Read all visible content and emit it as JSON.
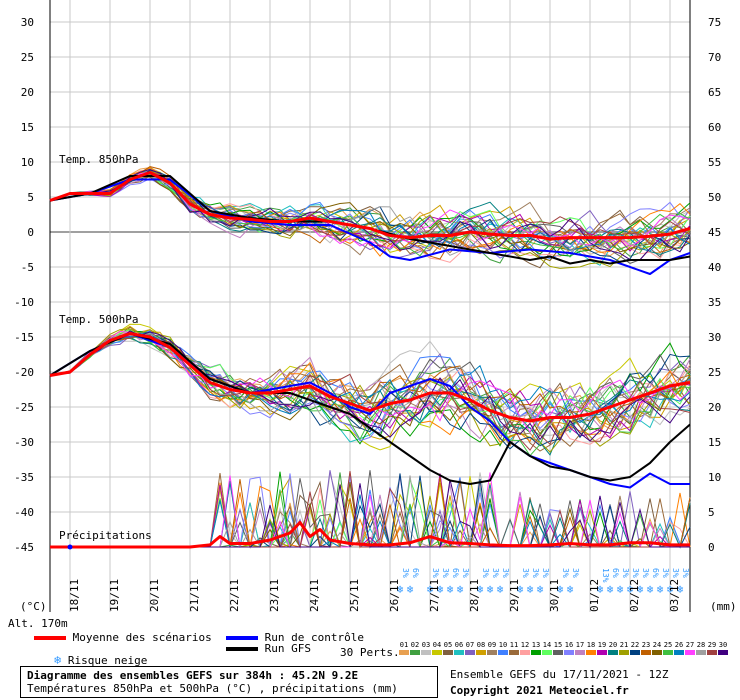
{
  "chart_data": {
    "type": "line",
    "title": "Diagramme des ensembles GEFS sur 384h : 45.2N 9.2E",
    "subtitle": "Températures 850hPa et 500hPa (°C) , précipitations (mm)",
    "left_axis": {
      "unit": "(°C)",
      "ylim": [
        -45,
        30
      ],
      "ticks": [
        30,
        25,
        20,
        15,
        10,
        5,
        0,
        -5,
        -10,
        -15,
        -20,
        -25,
        -30,
        -35,
        -40,
        -45
      ]
    },
    "right_axis": {
      "unit": "(mm)",
      "ylim": [
        0,
        75
      ],
      "ticks": [
        75,
        70,
        65,
        60,
        55,
        50,
        45,
        40,
        35,
        30,
        25,
        20,
        15,
        10,
        5,
        0
      ]
    },
    "x_dates": [
      "18/11",
      "19/11",
      "20/11",
      "21/11",
      "22/11",
      "23/11",
      "24/11",
      "25/11",
      "26/11",
      "27/11",
      "28/11",
      "29/11",
      "30/11",
      "01/12",
      "02/12",
      "03/12"
    ],
    "x_range_hours": [
      0,
      384
    ],
    "panel_labels": {
      "t850": "Temp. 850hPa",
      "t500": "Temp. 500hPa",
      "precip": "Précipitations"
    },
    "altitude": "Alt. 170m",
    "series": [
      {
        "name": "Moyenne des scénarios (850hPa)",
        "hours": [
          0,
          12,
          24,
          36,
          48,
          60,
          72,
          84,
          96,
          108,
          120,
          132,
          144,
          156,
          168,
          180,
          192,
          204,
          216,
          228,
          240,
          252,
          264,
          276,
          288,
          300,
          312,
          324,
          336,
          348,
          360,
          372,
          384
        ],
        "values": [
          4.5,
          5.5,
          5.5,
          5.5,
          7.5,
          8.5,
          7,
          4,
          2.5,
          2,
          1.8,
          1.5,
          1.5,
          2,
          1.5,
          1,
          0.5,
          -0.5,
          -0.8,
          -0.5,
          -0.5,
          0,
          -0.3,
          -0.5,
          -0.5,
          -1,
          -0.8,
          -0.8,
          -0.8,
          -0.8,
          -0.6,
          -0.3,
          0.5
        ]
      },
      {
        "name": "Moyenne des scénarios (500hPa)",
        "hours": [
          0,
          12,
          24,
          36,
          48,
          60,
          72,
          84,
          96,
          108,
          120,
          132,
          144,
          156,
          168,
          180,
          192,
          204,
          216,
          228,
          240,
          252,
          264,
          276,
          288,
          300,
          312,
          324,
          336,
          348,
          360,
          372,
          384
        ],
        "values": [
          -20.5,
          -20,
          -17.5,
          -15.5,
          -14.5,
          -15,
          -16.5,
          -19,
          -21.5,
          -22.5,
          -23,
          -23,
          -22.5,
          -22,
          -23.5,
          -24.5,
          -25.5,
          -24.5,
          -24,
          -23,
          -23,
          -24,
          -25.5,
          -26.5,
          -27,
          -26.5,
          -26.5,
          -26,
          -25,
          -24,
          -23,
          -22,
          -21.5
        ]
      },
      {
        "name": "Moyenne des scénarios (précipitations mm)",
        "hours": [
          0,
          12,
          24,
          36,
          48,
          60,
          72,
          84,
          96,
          102,
          108,
          120,
          132,
          144,
          150,
          156,
          162,
          168,
          180,
          192,
          204,
          216,
          228,
          240,
          252,
          264,
          276,
          288,
          300,
          312,
          324,
          336,
          348,
          360,
          372,
          384
        ],
        "values": [
          0,
          0,
          0,
          0,
          0,
          0,
          0,
          0,
          0.3,
          1.5,
          0.5,
          0.5,
          1,
          2,
          3.5,
          1.5,
          2.5,
          1,
          0.5,
          0.3,
          0.3,
          0.6,
          1.5,
          0.6,
          0.5,
          0.3,
          0.2,
          0.2,
          0.3,
          0.5,
          0.3,
          0.3,
          0.6,
          0.6,
          0.3,
          0.3
        ]
      },
      {
        "name": "Run de contrôle (850hPa)",
        "hours": [
          0,
          24,
          48,
          72,
          96,
          120,
          144,
          168,
          192,
          204,
          216,
          240,
          264,
          288,
          312,
          336,
          360,
          372,
          384
        ],
        "values": [
          4.5,
          5.5,
          7.5,
          7.5,
          3,
          1.5,
          1,
          1,
          -1.5,
          -3.5,
          -4,
          -2.5,
          -3,
          -2.5,
          -3,
          -4,
          -6,
          -4,
          -3
        ]
      },
      {
        "name": "Run de contrôle (500hPa)",
        "hours": [
          0,
          24,
          48,
          72,
          96,
          120,
          144,
          156,
          168,
          180,
          192,
          204,
          216,
          228,
          240,
          252,
          264,
          276,
          288,
          300,
          312,
          324,
          336,
          348,
          360,
          372,
          384
        ],
        "values": [
          -20.5,
          -17,
          -14.5,
          -16.5,
          -21,
          -23,
          -22,
          -21.5,
          -23,
          -25,
          -26,
          -23,
          -22,
          -21,
          -22,
          -25,
          -27,
          -30,
          -32,
          -33,
          -34,
          -35,
          -36,
          -36.5,
          -34.5,
          -36,
          -36
        ]
      },
      {
        "name": "Run GFS (850hPa)",
        "hours": [
          0,
          24,
          48,
          72,
          96,
          120,
          144,
          168,
          192,
          216,
          240,
          264,
          288,
          300,
          312,
          324,
          336,
          348,
          360,
          372,
          384
        ],
        "values": [
          4.5,
          5.5,
          8,
          8,
          3,
          2,
          1.5,
          1.5,
          0.5,
          -1,
          -2,
          -3,
          -4,
          -3.5,
          -4.5,
          -4,
          -4.5,
          -4,
          -4,
          -4,
          -3.5
        ]
      },
      {
        "name": "Run GFS (500hPa)",
        "hours": [
          0,
          24,
          48,
          72,
          96,
          120,
          144,
          168,
          180,
          192,
          204,
          216,
          228,
          240,
          252,
          264,
          276,
          288,
          300,
          312,
          324,
          336,
          348,
          360,
          372,
          384
        ],
        "values": [
          -20.5,
          -17,
          -14.5,
          -16,
          -21,
          -23,
          -23,
          -25,
          -26,
          -28,
          -30,
          -32,
          -34,
          -35.5,
          -36,
          -35.5,
          -30,
          -32,
          -33.5,
          -34,
          -35,
          -35.5,
          -35,
          -33,
          -30,
          -27.5
        ]
      }
    ],
    "legend": [
      {
        "label": "Moyenne des scénarios",
        "color": "#ff0000"
      },
      {
        "label": "Run de contrôle",
        "color": "#0000ff"
      },
      {
        "label": "Run GFS",
        "color": "#000000"
      },
      {
        "label": "Risque neige",
        "color": "#3399ff"
      }
    ],
    "snow_markers": [
      {
        "hour": 210,
        "label": "3%"
      },
      {
        "hour": 216,
        "label": "6%"
      },
      {
        "hour": 228,
        "label": "3%"
      },
      {
        "hour": 234,
        "label": "3%"
      },
      {
        "hour": 240,
        "label": "6%"
      },
      {
        "hour": 246,
        "label": "3%"
      },
      {
        "hour": 258,
        "label": "3%"
      },
      {
        "hour": 264,
        "label": "3%"
      },
      {
        "hour": 270,
        "label": "3%"
      },
      {
        "hour": 282,
        "label": "3%"
      },
      {
        "hour": 288,
        "label": "3%"
      },
      {
        "hour": 294,
        "label": "3%"
      },
      {
        "hour": 306,
        "label": "3%"
      },
      {
        "hour": 312,
        "label": "3%"
      },
      {
        "hour": 330,
        "label": "13%"
      },
      {
        "hour": 336,
        "label": "6%"
      },
      {
        "hour": 342,
        "label": "3%"
      },
      {
        "hour": 348,
        "label": "3%"
      },
      {
        "hour": 354,
        "label": "3%"
      },
      {
        "hour": 360,
        "label": "6%"
      },
      {
        "hour": 366,
        "label": "3%"
      },
      {
        "hour": 372,
        "label": "3%"
      },
      {
        "hour": 378,
        "label": "3%"
      }
    ],
    "perturbations": {
      "label": "30 Perts.",
      "ids": [
        "01",
        "02",
        "03",
        "04",
        "05",
        "06",
        "07",
        "08",
        "09",
        "10",
        "11",
        "12",
        "13",
        "14",
        "15",
        "16",
        "17",
        "18",
        "19",
        "20",
        "21",
        "22",
        "23",
        "24",
        "25",
        "26",
        "27",
        "28",
        "29",
        "30"
      ],
      "colors": [
        "#e8a050",
        "#40a040",
        "#c0c0c0",
        "#c8c800",
        "#806040",
        "#20c0c0",
        "#8060c0",
        "#d0a000",
        "#a08060",
        "#4080ff",
        "#9a6a3a",
        "#ffa0a0",
        "#00a000",
        "#60ff60",
        "#606060",
        "#8080ff",
        "#c080c0",
        "#ff8000",
        "#b000b0",
        "#008080",
        "#a0a000",
        "#004080",
        "#c06000",
        "#806000",
        "#40c040",
        "#0080c0",
        "#ff40ff",
        "#a0a0a0",
        "#a04040",
        "#400080"
      ]
    }
  },
  "footer": {
    "title": "Diagramme des ensembles GEFS sur 384h : 45.2N 9.2E",
    "subtitle": "Températures 850hPa et 500hPa (°C) , précipitations (mm)",
    "run": "Ensemble GEFS du 17/11/2021 - 12Z",
    "copyright": "Copyright 2021 Meteociel.fr"
  }
}
